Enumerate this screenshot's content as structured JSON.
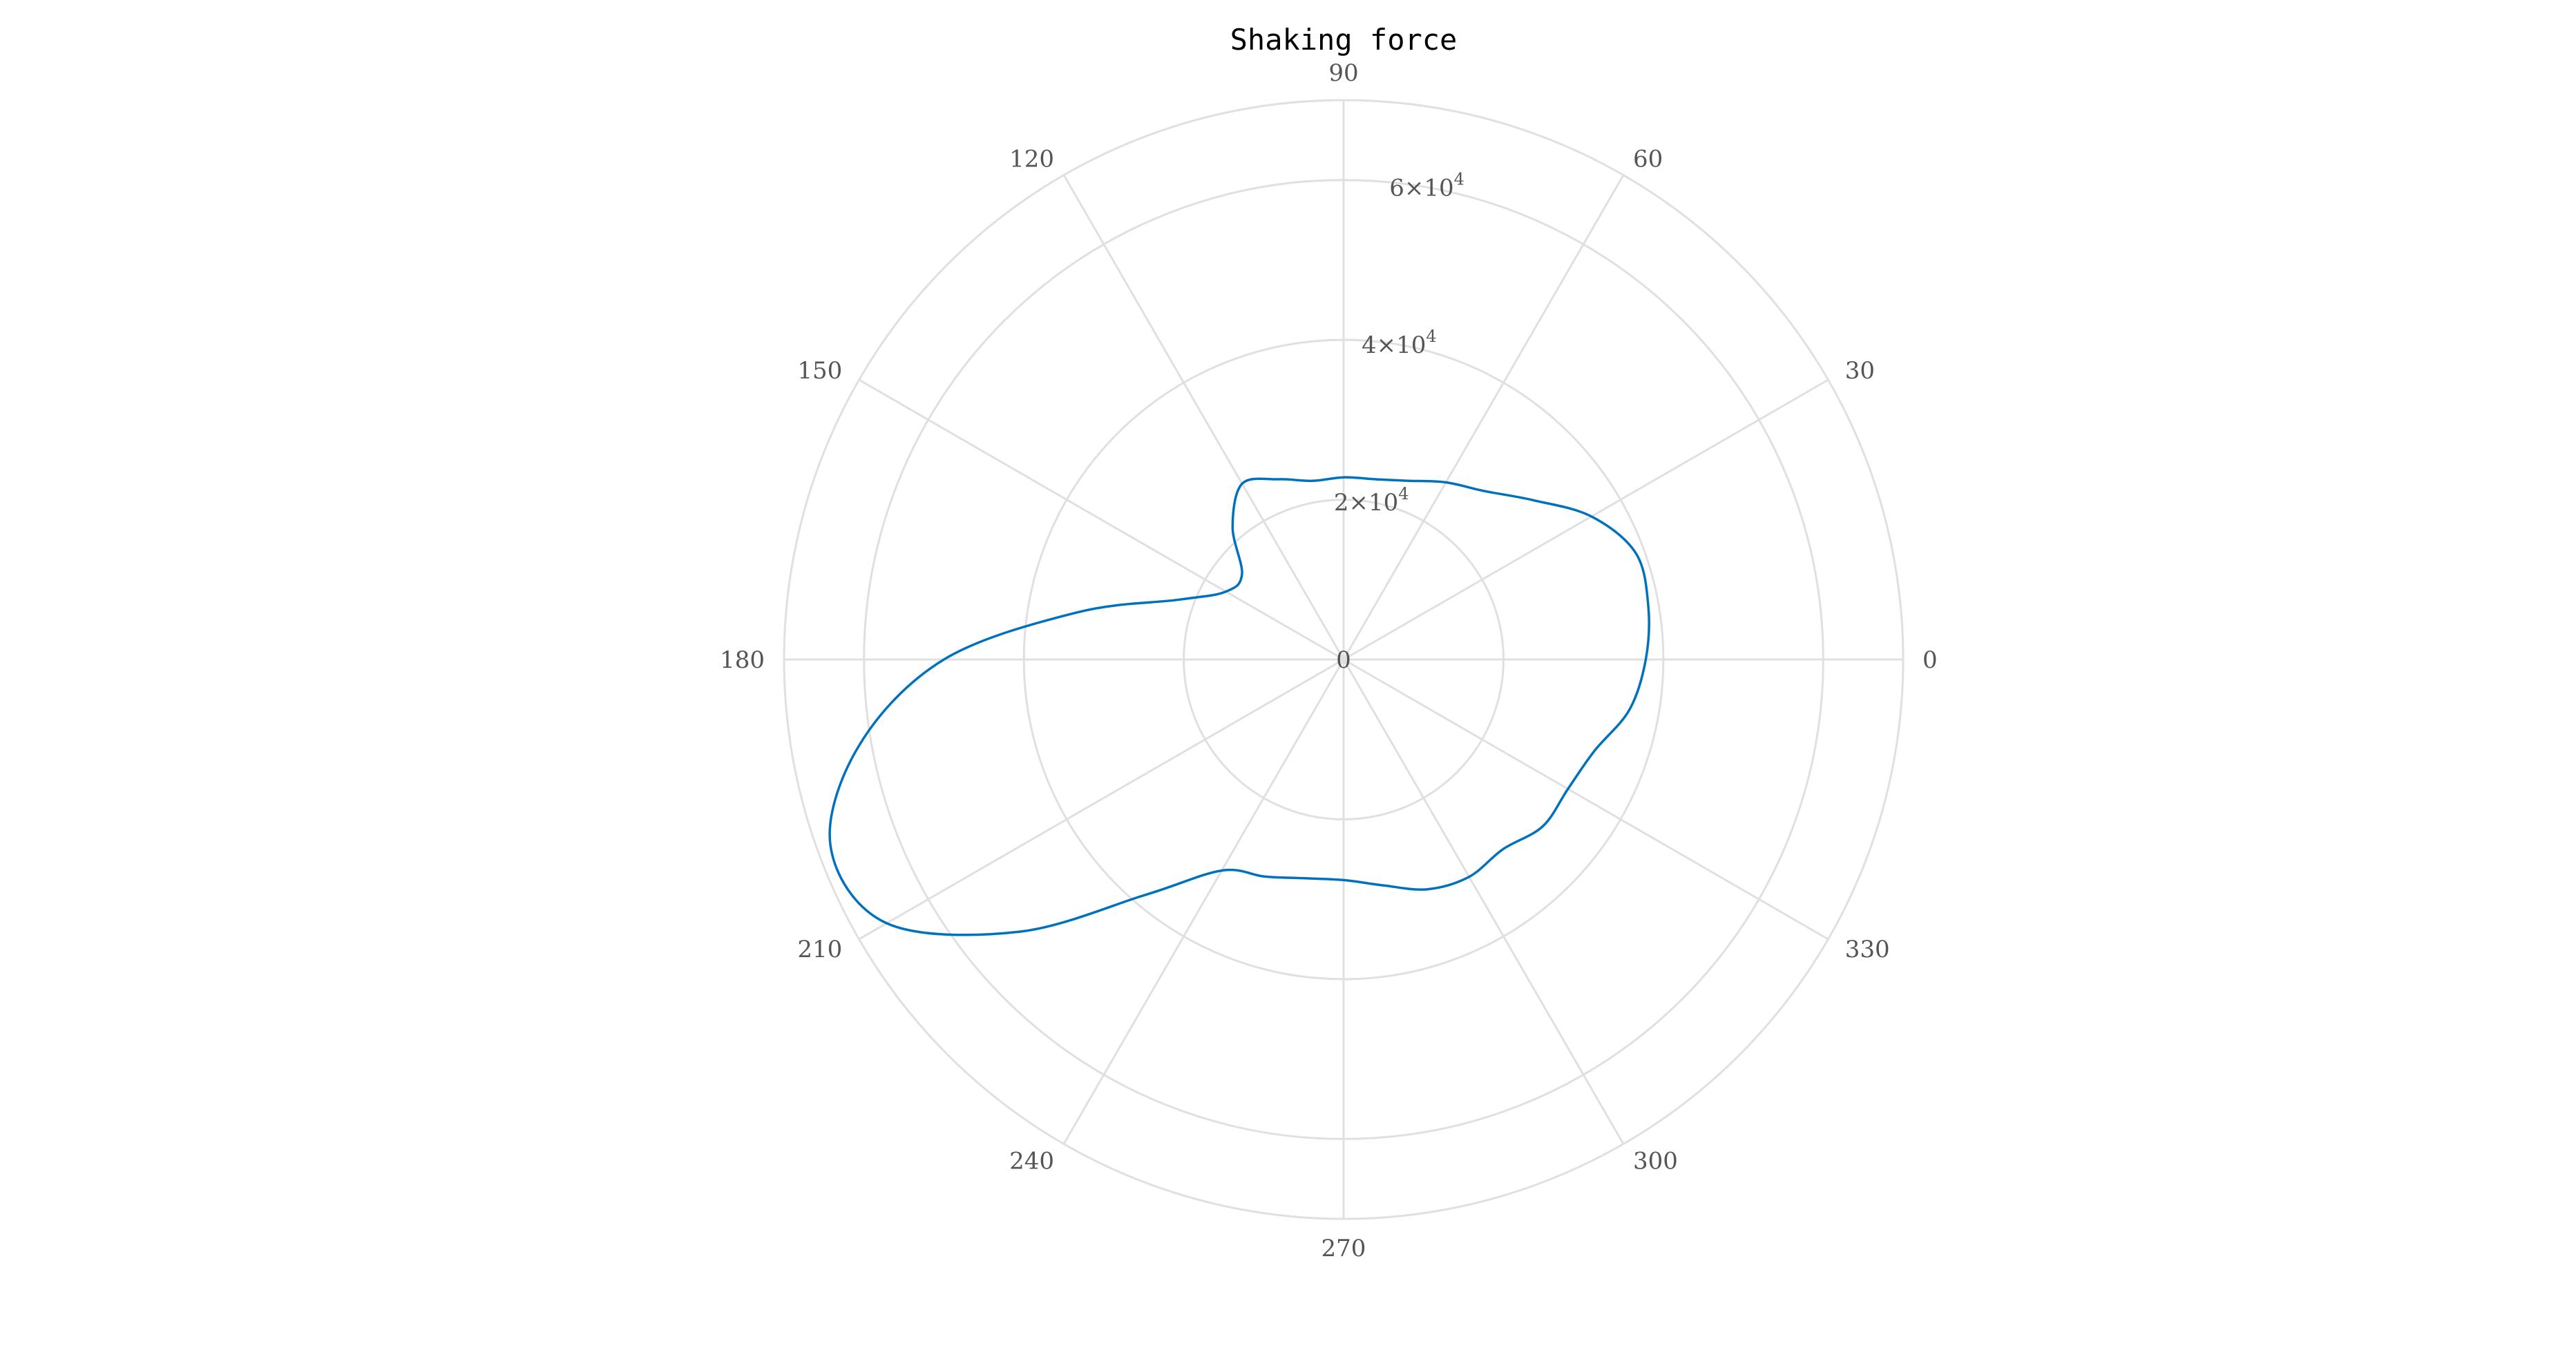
{
  "chart_data": {
    "type": "line",
    "coordinate_system": "polar",
    "title": "Shaking force",
    "theta_unit": "degrees",
    "rlim": [
      0,
      70000
    ],
    "r_ticks": [
      {
        "value": 0,
        "mantissa": "0",
        "exponent": ""
      },
      {
        "value": 20000,
        "mantissa": "2×10",
        "exponent": "4"
      },
      {
        "value": 40000,
        "mantissa": "4×10",
        "exponent": "4"
      },
      {
        "value": 60000,
        "mantissa": "6×10",
        "exponent": "4"
      }
    ],
    "theta_ticks": [
      {
        "value": 0,
        "label": "0"
      },
      {
        "value": 30,
        "label": "30"
      },
      {
        "value": 60,
        "label": "60"
      },
      {
        "value": 90,
        "label": "90"
      },
      {
        "value": 120,
        "label": "120"
      },
      {
        "value": 150,
        "label": "150"
      },
      {
        "value": 180,
        "label": "180"
      },
      {
        "value": 210,
        "label": "210"
      },
      {
        "value": 240,
        "label": "240"
      },
      {
        "value": 270,
        "label": "270"
      },
      {
        "value": 300,
        "label": "300"
      },
      {
        "value": 330,
        "label": "330"
      }
    ],
    "grid": true,
    "series": [
      {
        "color": "#0072BD",
        "theta": [
          0,
          10,
          20,
          30,
          40,
          50,
          60,
          70,
          80,
          90,
          100,
          110,
          120,
          130,
          140,
          150,
          160,
          170,
          180,
          190,
          200,
          210,
          220,
          230,
          240,
          250,
          260,
          270,
          280,
          290,
          300,
          310,
          320,
          330,
          340,
          350,
          360
        ],
        "r": [
          37800,
          38700,
          38900,
          35800,
          31000,
          27500,
          25600,
          23800,
          22900,
          22800,
          22700,
          24000,
          25400,
          21600,
          16600,
          17000,
          21900,
          33900,
          50000,
          61500,
          68300,
          66000,
          53000,
          38400,
          30500,
          28900,
          27800,
          27600,
          28700,
          30600,
          31400,
          31000,
          32500,
          32400,
          33400,
          36300,
          37800
        ]
      }
    ]
  }
}
